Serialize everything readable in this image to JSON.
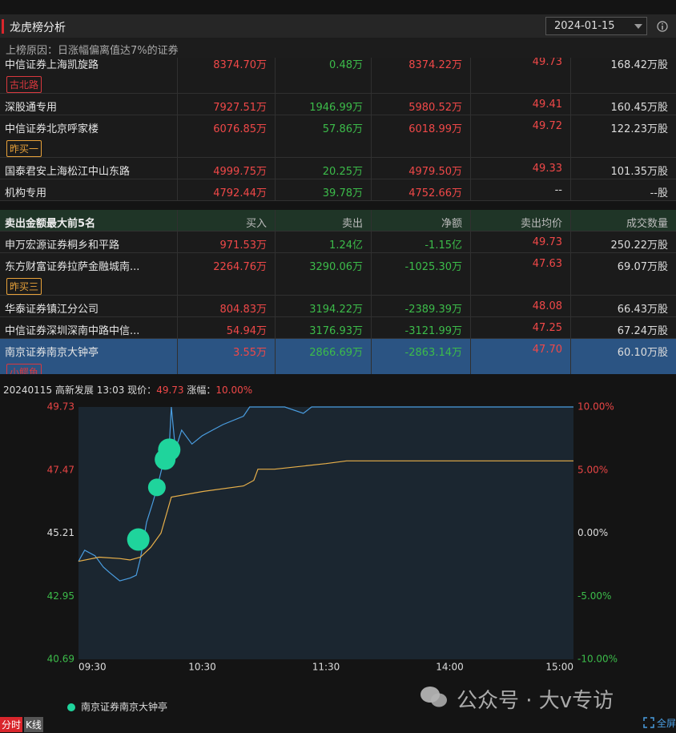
{
  "header": {
    "title": "龙虎榜分析",
    "date": "2024-01-15",
    "reason": "上榜原因：日涨幅偏离值达7%的证券"
  },
  "buy_rows": [
    {
      "name": "中信证券上海凯旋路",
      "tag": "古北路",
      "cells": [
        "8374.70万",
        "0.48万",
        "8374.22万",
        "49.73",
        "168.42万股"
      ]
    },
    {
      "name": "深股通专用",
      "cells": [
        "7927.51万",
        "1946.99万",
        "5980.52万",
        "49.41",
        "160.45万股"
      ]
    },
    {
      "name": "中信证券北京呼家楼",
      "tag": "昨买一",
      "cells": [
        "6076.85万",
        "57.86万",
        "6018.99万",
        "49.72",
        "122.23万股"
      ]
    },
    {
      "name": "国泰君安上海松江中山东路",
      "cells": [
        "4999.75万",
        "20.25万",
        "4979.50万",
        "49.33",
        "101.35万股"
      ]
    },
    {
      "name": "机构专用",
      "cells": [
        "4792.44万",
        "39.78万",
        "4752.66万",
        "--",
        "--股"
      ]
    }
  ],
  "sell_table": {
    "title": "卖出金额最大前5名",
    "columns": [
      "买入",
      "卖出",
      "净额",
      "卖出均价",
      "成交数量"
    ],
    "rows": [
      {
        "name": "申万宏源证券桐乡和平路",
        "cells": [
          "971.53万",
          "1.24亿",
          "-1.15亿",
          "49.73",
          "250.22万股"
        ]
      },
      {
        "name": "东方财富证券拉萨金融城南...",
        "tag": "昨买三",
        "cells": [
          "2264.76万",
          "3290.06万",
          "-1025.30万",
          "47.63",
          "69.07万股"
        ]
      },
      {
        "name": "华泰证券镇江分公司",
        "cells": [
          "804.83万",
          "3194.22万",
          "-2389.39万",
          "48.08",
          "66.43万股"
        ]
      },
      {
        "name": "中信证券深圳深南中路中信...",
        "cells": [
          "54.94万",
          "3176.93万",
          "-3121.99万",
          "47.25",
          "67.24万股"
        ]
      },
      {
        "name": "南京证券南京大钟亭",
        "tag": "小鳄鱼",
        "cells": [
          "3.55万",
          "2866.69万",
          "-2863.14万",
          "47.70",
          "60.10万股"
        ]
      }
    ]
  },
  "quote": {
    "date": "20240115",
    "name": "高新发展",
    "time": "13:03",
    "price_label": "现价：",
    "price": "49.73",
    "change_label": "涨幅：",
    "change": "10.00%"
  },
  "chart_data": {
    "type": "line",
    "xlim": [
      0,
      240
    ],
    "xticks": [
      {
        "value": 0,
        "label": "09:30"
      },
      {
        "value": 60,
        "label": "10:30"
      },
      {
        "value": 120,
        "label": "11:30"
      },
      {
        "value": 180,
        "label": "14:00"
      },
      {
        "value": 240,
        "label": "15:00"
      }
    ],
    "ylim": [
      40.69,
      49.73
    ],
    "yticks": [
      49.73,
      47.47,
      45.21,
      42.95,
      40.69
    ],
    "y2lim": [
      -10,
      10
    ],
    "y2ticks": [
      {
        "value": 10,
        "label": "10.00%"
      },
      {
        "value": 5,
        "label": "5.00%"
      },
      {
        "value": 0,
        "label": "0.00%"
      },
      {
        "value": -5,
        "label": "-5.00%"
      },
      {
        "value": -10,
        "label": "-10.00%"
      }
    ],
    "series": [
      {
        "color": "#4a9de0",
        "x": [
          0,
          3,
          8,
          12,
          15,
          20,
          25,
          28,
          30,
          33,
          36,
          38,
          41,
          44,
          45,
          47,
          50,
          55,
          60,
          65,
          70,
          80,
          83,
          100,
          109,
          113,
          240
        ],
        "values": [
          44.2,
          44.6,
          44.4,
          44.0,
          43.8,
          43.5,
          43.6,
          43.7,
          44.3,
          45.6,
          46.3,
          46.8,
          47.7,
          48.3,
          49.73,
          48.2,
          48.9,
          48.4,
          48.7,
          48.9,
          49.1,
          49.4,
          49.73,
          49.73,
          49.5,
          49.73,
          49.73
        ]
      },
      {
        "color": "#e8b04a",
        "x": [
          0,
          10,
          20,
          25,
          30,
          35,
          40,
          45,
          60,
          80,
          85,
          87,
          95,
          120,
          130,
          240
        ],
        "values": [
          44.2,
          44.35,
          44.3,
          44.25,
          44.35,
          44.7,
          45.21,
          46.5,
          46.7,
          46.9,
          47.1,
          47.5,
          47.5,
          47.7,
          47.8,
          47.8
        ]
      }
    ],
    "markers": {
      "name": "南京证券南京大钟亭",
      "color": "#1fd49c",
      "x": [
        29,
        38,
        42,
        44
      ],
      "values": [
        44.98,
        46.85,
        47.85,
        48.2
      ],
      "sizes": [
        14,
        11,
        13,
        14
      ]
    }
  },
  "footer": {
    "tabs": [
      "分时",
      "K线"
    ],
    "fullscreen": "全屏",
    "watermark": "公众号 · 大v专访"
  }
}
